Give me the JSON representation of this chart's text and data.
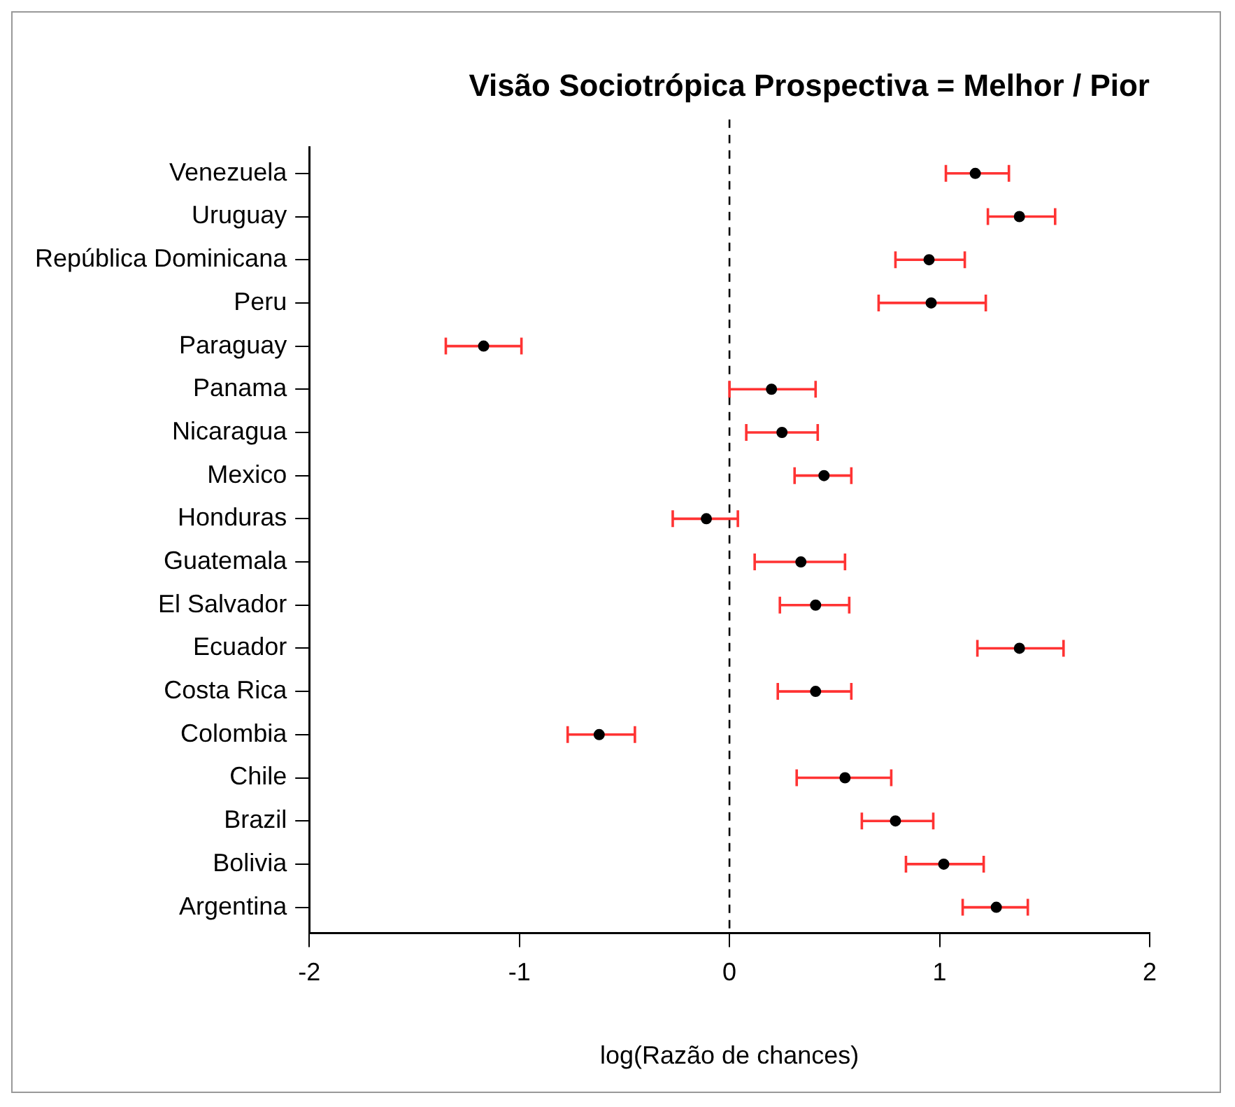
{
  "chart_data": {
    "type": "scatter",
    "orientation": "horizontal",
    "title": "Visão Sociotrópica Prospectiva = Melhor / Pior",
    "xlabel": "log(Razão de chances)",
    "categories": [
      "Venezuela",
      "Uruguay",
      "República Dominicana",
      "Peru",
      "Paraguay",
      "Panama",
      "Nicaragua",
      "Mexico",
      "Honduras",
      "Guatemala",
      "El Salvador",
      "Ecuador",
      "Costa Rica",
      "Colombia",
      "Chile",
      "Brazil",
      "Bolivia",
      "Argentina"
    ],
    "series": [
      {
        "color": "#000000",
        "values": [
          1.17,
          1.38,
          0.95,
          0.96,
          -1.17,
          0.2,
          0.25,
          0.45,
          -0.11,
          0.34,
          0.41,
          1.38,
          0.41,
          -0.62,
          0.55,
          0.79,
          1.02,
          1.27
        ],
        "errors": [
          [
            1.03,
            1.33
          ],
          [
            1.23,
            1.55
          ],
          [
            0.79,
            1.12
          ],
          [
            0.71,
            1.22
          ],
          [
            -1.35,
            -0.99
          ],
          [
            0.0,
            0.41
          ],
          [
            0.08,
            0.42
          ],
          [
            0.31,
            0.58
          ],
          [
            -0.27,
            0.04
          ],
          [
            0.12,
            0.55
          ],
          [
            0.24,
            0.57
          ],
          [
            1.18,
            1.59
          ],
          [
            0.23,
            0.58
          ],
          [
            -0.77,
            -0.45
          ],
          [
            0.32,
            0.77
          ],
          [
            0.63,
            0.97
          ],
          [
            0.84,
            1.21
          ],
          [
            1.11,
            1.42
          ]
        ]
      }
    ],
    "xlim": [
      -2,
      2
    ],
    "xticks": [
      -2,
      -1,
      0,
      1,
      2
    ],
    "ref_lines": [
      {
        "axis": "x",
        "value": 0,
        "line_style": "dashed",
        "color": "#000000"
      }
    ],
    "grid": false,
    "legend": false,
    "marker": "circle"
  }
}
